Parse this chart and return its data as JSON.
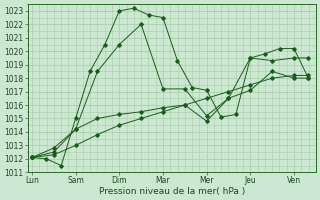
{
  "title": "",
  "xlabel": "Pression niveau de la mer( hPa )",
  "ylabel": "",
  "background_color": "#cde8d2",
  "grid_color": "#a8cca8",
  "line_color": "#1a5c1a",
  "ylim": [
    1011,
    1023.5
  ],
  "yticks": [
    1011,
    1012,
    1013,
    1014,
    1015,
    1016,
    1017,
    1018,
    1019,
    1020,
    1021,
    1022,
    1023
  ],
  "x_labels": [
    "Lun",
    "Sam",
    "Dim",
    "Mar",
    "Mer",
    "Jeu",
    "Ven"
  ],
  "x_positions": [
    0,
    1,
    2,
    3,
    4,
    5,
    6
  ],
  "xlim": [
    -0.1,
    6.5
  ],
  "lines": [
    {
      "x": [
        0,
        0.33,
        0.67,
        1.0,
        1.33,
        1.67,
        2.0,
        2.33,
        2.67,
        3.0,
        3.33,
        3.67,
        4.0,
        4.33,
        4.67,
        5.0,
        5.33,
        5.67,
        6.0,
        6.33
      ],
      "y": [
        1012.1,
        1012.0,
        1011.5,
        1015.0,
        1018.5,
        1020.5,
        1023.0,
        1023.2,
        1022.7,
        1022.5,
        1019.3,
        1017.3,
        1017.1,
        1015.1,
        1015.3,
        1019.5,
        1019.8,
        1020.2,
        1020.2,
        1018.0
      ]
    },
    {
      "x": [
        0,
        0.5,
        1.0,
        1.5,
        2.0,
        2.5,
        3.0,
        3.5,
        4.0,
        4.5,
        5.0,
        5.5,
        6.0,
        6.33
      ],
      "y": [
        1012.1,
        1012.5,
        1014.2,
        1015.0,
        1015.3,
        1015.5,
        1015.8,
        1016.0,
        1014.8,
        1016.5,
        1017.1,
        1018.5,
        1018.0,
        1018.0
      ]
    },
    {
      "x": [
        0,
        0.5,
        1.0,
        1.5,
        2.0,
        2.5,
        3.0,
        3.5,
        4.0,
        4.5,
        5.0,
        5.5,
        6.0,
        6.33
      ],
      "y": [
        1012.1,
        1012.3,
        1013.0,
        1013.8,
        1014.5,
        1015.0,
        1015.5,
        1016.0,
        1016.5,
        1017.0,
        1017.5,
        1018.0,
        1018.2,
        1018.2
      ]
    },
    {
      "x": [
        0,
        0.5,
        1.0,
        1.5,
        2.0,
        2.5,
        3.0,
        3.5,
        4.0,
        4.5,
        5.0,
        5.5,
        6.0,
        6.33
      ],
      "y": [
        1012.1,
        1012.8,
        1014.2,
        1018.5,
        1020.5,
        1022.0,
        1017.2,
        1017.2,
        1015.2,
        1016.5,
        1019.5,
        1019.3,
        1019.5,
        1019.5
      ]
    }
  ]
}
